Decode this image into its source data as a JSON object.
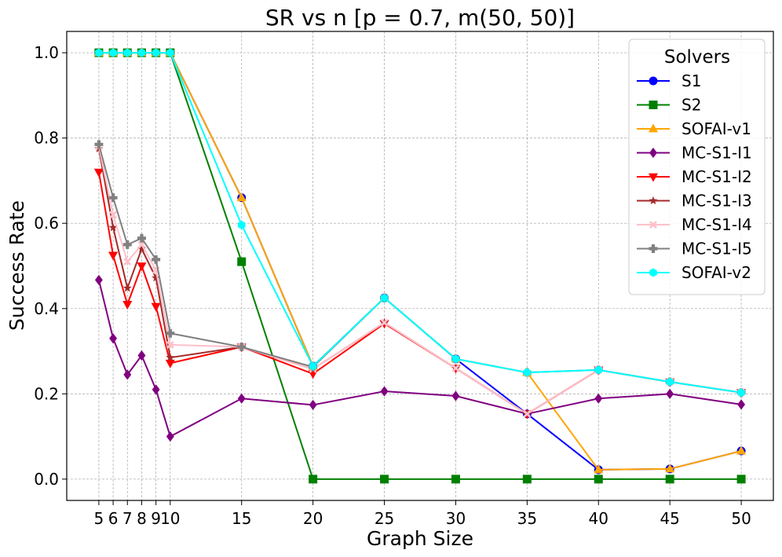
{
  "chart_data": {
    "type": "line",
    "title": "SR vs n [p = 0.7, m(50, 50)]",
    "xlabel": "Graph Size",
    "ylabel": "Success Rate",
    "x": [
      5,
      6,
      7,
      8,
      9,
      10,
      15,
      20,
      25,
      30,
      35,
      40,
      45,
      50
    ],
    "xticks": [
      5,
      6,
      7,
      8,
      9,
      10,
      15,
      20,
      25,
      30,
      35,
      40,
      45,
      50
    ],
    "xtick_labels": [
      "5",
      "6",
      "7",
      "8",
      "9",
      "10",
      "15",
      "20",
      "25",
      "30",
      "35",
      "40",
      "45",
      "50"
    ],
    "yticks": [
      0.0,
      0.2,
      0.4,
      0.6,
      0.8,
      1.0
    ],
    "ytick_labels": [
      "0.0",
      "0.2",
      "0.4",
      "0.6",
      "0.8",
      "1.0"
    ],
    "xlim": [
      2.75,
      52.25
    ],
    "ylim": [
      -0.05,
      1.05
    ],
    "grid": true,
    "legend_title": "Solvers",
    "legend_position": "top-right",
    "series": [
      {
        "name": "S1",
        "color": "#0000ff",
        "marker": "circle",
        "values": [
          1.0,
          1.0,
          1.0,
          1.0,
          1.0,
          1.0,
          0.66,
          0.265,
          0.425,
          0.282,
          0.153,
          0.022,
          0.024,
          0.066
        ]
      },
      {
        "name": "S2",
        "color": "#008000",
        "marker": "square",
        "values": [
          1.0,
          1.0,
          1.0,
          1.0,
          1.0,
          1.0,
          0.51,
          0.0,
          0.0,
          0.0,
          0.0,
          0.0,
          0.0,
          0.0
        ]
      },
      {
        "name": "SOFAI-v1",
        "color": "#ffa500",
        "marker": "triangle-up",
        "values": [
          1.0,
          1.0,
          1.0,
          1.0,
          1.0,
          1.0,
          0.66,
          0.265,
          0.425,
          0.282,
          0.25,
          0.022,
          0.024,
          0.066
        ]
      },
      {
        "name": "MC-S1-I1",
        "color": "#800080",
        "marker": "diamond",
        "values": [
          0.467,
          0.33,
          0.245,
          0.29,
          0.21,
          0.1,
          0.189,
          0.174,
          0.206,
          0.195,
          0.153,
          0.189,
          0.2,
          0.175
        ]
      },
      {
        "name": "MC-S1-I2",
        "color": "#ff0000",
        "marker": "triangle-down",
        "values": [
          0.72,
          0.525,
          0.41,
          0.5,
          0.405,
          0.272,
          0.31,
          0.247,
          0.365,
          0.26,
          0.153,
          0.256,
          0.228,
          0.203
        ]
      },
      {
        "name": "MC-S1-I3",
        "color": "#a52a2a",
        "marker": "star",
        "values": [
          0.775,
          0.59,
          0.448,
          0.54,
          0.472,
          0.285,
          0.31,
          0.258,
          0.367,
          0.26,
          0.153,
          0.256,
          0.228,
          0.203
        ]
      },
      {
        "name": "MC-S1-I4",
        "color": "#ffc0cb",
        "marker": "x",
        "values": [
          0.78,
          0.62,
          0.51,
          0.55,
          0.49,
          0.315,
          0.31,
          0.258,
          0.367,
          0.26,
          0.153,
          0.256,
          0.228,
          0.203
        ]
      },
      {
        "name": "MC-S1-I5",
        "color": "#808080",
        "marker": "plus",
        "values": [
          0.785,
          0.66,
          0.55,
          0.565,
          0.515,
          0.342,
          0.31,
          0.263,
          0.425,
          0.282,
          0.25,
          0.256,
          0.228,
          0.203
        ]
      },
      {
        "name": "SOFAI-v2",
        "color": "#00ffff",
        "marker": "hexagon",
        "values": [
          1.0,
          1.0,
          1.0,
          1.0,
          1.0,
          1.0,
          0.596,
          0.265,
          0.425,
          0.282,
          0.25,
          0.256,
          0.228,
          0.203
        ]
      }
    ]
  }
}
